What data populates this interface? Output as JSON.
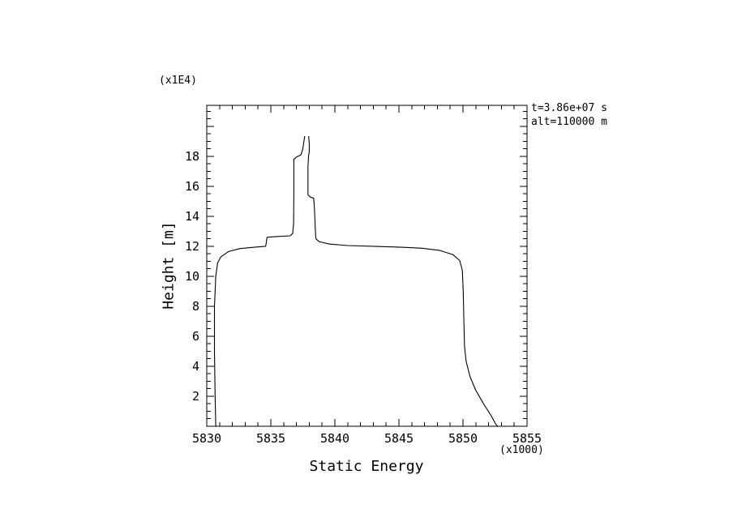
{
  "plot": {
    "y_unit": "(x1E4)",
    "x_unit": "(x1000)",
    "x_title": "Static Energy",
    "y_title": "Height [m]",
    "annotation_line1": "t=3.86e+07 s",
    "annotation_line2": "alt=110000 m"
  },
  "chart_data": {
    "type": "line",
    "title": "",
    "xlabel": "Static Energy (x1000)",
    "ylabel": "Height [m] (x1E4)",
    "xlim": [
      5830,
      5855
    ],
    "ylim": [
      0,
      21.4
    ],
    "x_ticks": [
      5830,
      5835,
      5840,
      5845,
      5850,
      5855
    ],
    "y_ticks": [
      2,
      4,
      6,
      8,
      10,
      12,
      14,
      16,
      18
    ],
    "y_unlabeled_major_ticks": [
      20
    ],
    "x_minor_step": 1,
    "y_minor_step": 0.5,
    "grid": false,
    "legend": "none",
    "line_color": "#000000",
    "annotations": [
      "t=3.86e+07 s",
      "alt=110000 m"
    ],
    "series": [
      {
        "name": "profile-left-branch",
        "points": [
          [
            5830.7,
            0
          ],
          [
            5830.65,
            2
          ],
          [
            5830.6,
            5
          ],
          [
            5830.6,
            8
          ],
          [
            5830.7,
            10
          ],
          [
            5830.85,
            10.9
          ],
          [
            5831.1,
            11.3
          ],
          [
            5831.7,
            11.65
          ],
          [
            5832.6,
            11.85
          ],
          [
            5833.8,
            11.95
          ],
          [
            5834.6,
            12.0
          ],
          [
            5834.65,
            12.3
          ],
          [
            5834.7,
            12.6
          ],
          [
            5835.4,
            12.65
          ],
          [
            5836.5,
            12.7
          ],
          [
            5836.7,
            12.85
          ],
          [
            5836.78,
            13.5
          ],
          [
            5836.8,
            15.5
          ],
          [
            5836.8,
            17.8
          ],
          [
            5837.0,
            17.95
          ],
          [
            5837.35,
            18.1
          ],
          [
            5837.5,
            18.5
          ],
          [
            5837.6,
            19.1
          ],
          [
            5837.65,
            19.35
          ]
        ]
      },
      {
        "name": "profile-right-branch",
        "points": [
          [
            5837.95,
            19.35
          ],
          [
            5838.0,
            18.9
          ],
          [
            5838.0,
            18.3
          ],
          [
            5837.95,
            18.05
          ],
          [
            5837.9,
            17.3
          ],
          [
            5837.9,
            15.45
          ],
          [
            5838.05,
            15.3
          ],
          [
            5838.35,
            15.2
          ],
          [
            5838.42,
            14.3
          ],
          [
            5838.47,
            13.2
          ],
          [
            5838.52,
            12.5
          ],
          [
            5838.8,
            12.3
          ],
          [
            5839.6,
            12.15
          ],
          [
            5841,
            12.05
          ],
          [
            5843,
            12.0
          ],
          [
            5845,
            11.95
          ],
          [
            5846.8,
            11.87
          ],
          [
            5848.2,
            11.72
          ],
          [
            5849.2,
            11.45
          ],
          [
            5849.75,
            11.05
          ],
          [
            5849.95,
            10.4
          ],
          [
            5850.02,
            9
          ],
          [
            5850.07,
            7
          ],
          [
            5850.12,
            5.3
          ],
          [
            5850.25,
            4.3
          ],
          [
            5850.55,
            3.3
          ],
          [
            5851.0,
            2.4
          ],
          [
            5851.6,
            1.5
          ],
          [
            5852.2,
            0.7
          ],
          [
            5852.55,
            0.15
          ],
          [
            5852.7,
            0
          ]
        ]
      }
    ]
  }
}
